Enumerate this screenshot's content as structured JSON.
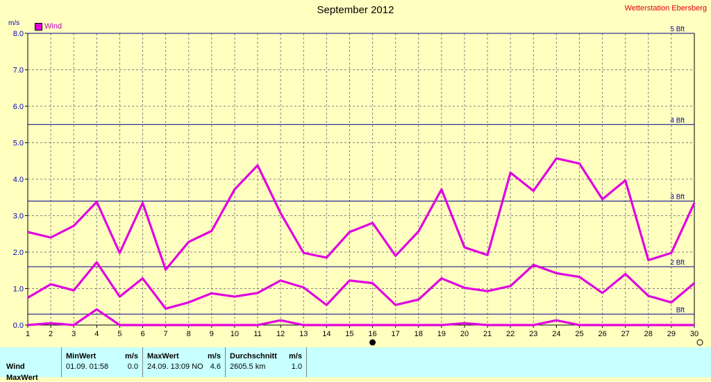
{
  "header": {
    "title": "September 2012",
    "station": "Wetterstation Ebersberg",
    "unit": "m/s"
  },
  "legend": {
    "label": "Wind",
    "color": "#e000e0"
  },
  "chart_data": {
    "type": "line",
    "title": "September 2012",
    "ylabel": "m/s",
    "xlabel": "",
    "xlim": [
      1,
      30
    ],
    "ylim": [
      0,
      8
    ],
    "x": [
      1,
      2,
      3,
      4,
      5,
      6,
      7,
      8,
      9,
      10,
      11,
      12,
      13,
      14,
      15,
      16,
      17,
      18,
      19,
      20,
      21,
      22,
      23,
      24,
      25,
      26,
      27,
      28,
      29,
      30
    ],
    "yticks": [
      "0.0",
      "1.0",
      "2.0",
      "3.0",
      "4.0",
      "5.0",
      "6.0",
      "7.0",
      "8.0"
    ],
    "series": [
      {
        "role": "max",
        "values": [
          2.55,
          2.4,
          2.72,
          3.38,
          1.98,
          3.35,
          1.52,
          2.28,
          2.58,
          3.72,
          4.38,
          3.07,
          1.98,
          1.85,
          2.55,
          2.8,
          1.9,
          2.57,
          3.72,
          2.13,
          1.92,
          4.18,
          3.68,
          4.57,
          4.43,
          3.45,
          3.97,
          1.78,
          1.98,
          3.35
        ]
      },
      {
        "role": "avg",
        "values": [
          0.75,
          1.12,
          0.95,
          1.72,
          0.78,
          1.28,
          0.45,
          0.62,
          0.87,
          0.78,
          0.88,
          1.22,
          1.03,
          0.55,
          1.22,
          1.15,
          0.55,
          0.7,
          1.28,
          1.02,
          0.93,
          1.07,
          1.65,
          1.42,
          1.32,
          0.88,
          1.4,
          0.8,
          0.62,
          1.15
        ]
      },
      {
        "role": "min",
        "values": [
          0,
          0.05,
          0,
          0.43,
          0,
          0,
          0,
          0,
          0,
          0,
          0,
          0.13,
          0,
          0,
          0,
          0,
          0,
          0,
          0,
          0.05,
          0,
          0,
          0,
          0.13,
          0,
          0,
          0,
          0,
          0,
          0
        ]
      }
    ],
    "bft_lines": [
      {
        "label": "5 Bft",
        "value": 8.0
      },
      {
        "label": "4 Bft",
        "value": 5.5
      },
      {
        "label": "3 Bft",
        "value": 3.4
      },
      {
        "label": "2 Bft",
        "value": 1.6
      },
      {
        "label": "Bft",
        "value": 0.3
      }
    ],
    "grid": true,
    "legend": "top-left"
  },
  "stats": {
    "row_label": "Wind",
    "row_label2": "MaxWert",
    "min": {
      "header": "MinWert",
      "unit": "m/s",
      "when": "01.09.  01:58",
      "value": "0.0"
    },
    "max": {
      "header": "MaxWert",
      "unit": "m/s",
      "when": "24.09.  13:09 NO",
      "value": "4.6"
    },
    "avg": {
      "header": "Durchschnitt",
      "unit": "m/s",
      "distance": "2605.5 km",
      "value": "1.0"
    }
  }
}
